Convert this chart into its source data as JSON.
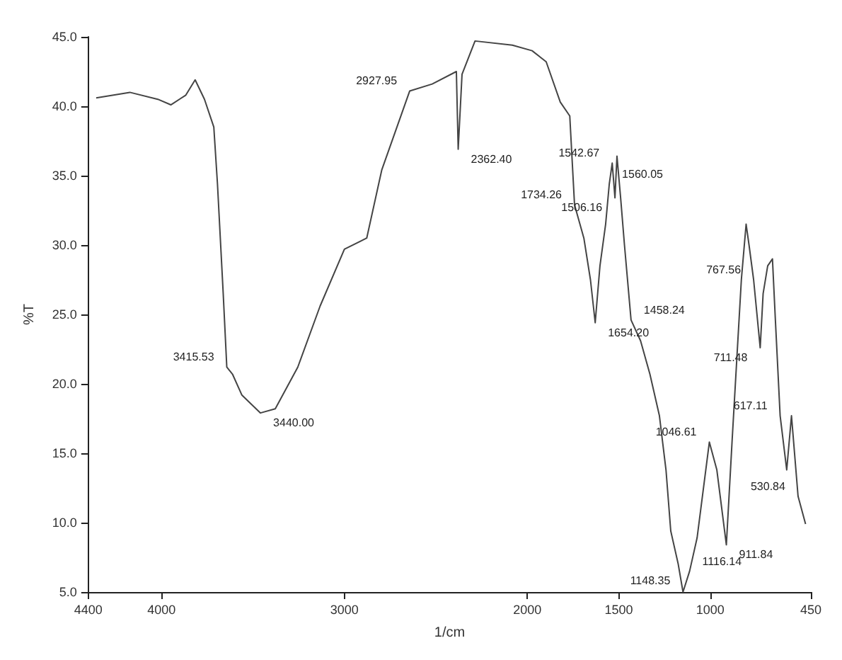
{
  "chart_data": {
    "type": "line",
    "xlabel": "1/cm",
    "ylabel": "%T",
    "grid": false,
    "marker": "none",
    "line_style": "solid",
    "xlim": [
      4400,
      450
    ],
    "xticks": [
      4400,
      4000,
      3000,
      2000,
      1500,
      1000,
      450
    ],
    "ylim": [
      5,
      45
    ],
    "yticks": [
      {
        "value": 5,
        "label": "5.0"
      },
      {
        "value": 10,
        "label": "10.0"
      },
      {
        "value": 15,
        "label": "15.0"
      },
      {
        "value": 20,
        "label": "20.0"
      },
      {
        "value": 25,
        "label": "25.0"
      },
      {
        "value": 30,
        "label": "30.0"
      },
      {
        "value": 35,
        "label": "35.0"
      },
      {
        "value": 40,
        "label": "40.0"
      },
      {
        "value": 45,
        "label": "45.0"
      }
    ],
    "x": [
      4357,
      4173,
      4020,
      3949,
      3867,
      3816,
      3765,
      3714,
      3694,
      3663,
      3643,
      3612,
      3561,
      3459,
      3378,
      3255,
      3133,
      3000,
      2878,
      2796,
      2643,
      2520,
      2388,
      2378,
      2357,
      2286,
      2082,
      1974,
      1897,
      1820,
      1768,
      1742,
      1691,
      1655,
      1629,
      1603,
      1572,
      1552,
      1536,
      1521,
      1510,
      1490,
      1469,
      1433,
      1381,
      1330,
      1278,
      1242,
      1216,
      1175,
      1149,
      1113,
      1072,
      1005,
      964,
      912,
      881,
      830,
      804,
      788,
      763,
      727,
      711,
      686,
      660,
      644,
      618,
      582,
      556,
      520,
      479
    ],
    "series": [
      {
        "color": "#444444",
        "values": [
          40.6,
          41.0,
          40.5,
          40.1,
          40.8,
          41.9,
          40.5,
          38.5,
          34.4,
          26.6,
          21.2,
          20.7,
          19.2,
          17.9,
          18.2,
          21.2,
          25.6,
          29.7,
          30.5,
          35.4,
          41.1,
          41.6,
          42.5,
          36.9,
          42.3,
          44.7,
          44.4,
          44.0,
          43.2,
          40.3,
          39.3,
          32.9,
          30.5,
          27.5,
          24.4,
          28.5,
          31.5,
          34.4,
          35.9,
          33.4,
          36.4,
          33.4,
          30.0,
          24.6,
          23.1,
          20.7,
          17.7,
          13.8,
          9.4,
          7.0,
          5.0,
          6.5,
          8.9,
          15.8,
          13.8,
          8.4,
          15.8,
          27.5,
          31.5,
          30.0,
          27.5,
          22.6,
          26.5,
          28.5,
          29.0,
          24.6,
          17.7,
          13.8,
          17.7,
          11.9,
          9.9
        ]
      }
    ],
    "annotations": [
      {
        "text": "3415.53",
        "x": 3643,
        "y": 21.2
      },
      {
        "text": "3440.00",
        "x": 3459,
        "y": 17.9
      },
      {
        "text": "2927.95",
        "x": 2643,
        "y": 41.1
      },
      {
        "text": "2362.40",
        "x": 2378,
        "y": 36.9
      },
      {
        "text": "1734.26",
        "x": 1742,
        "y": 32.9
      },
      {
        "text": "1654.20",
        "x": 1629,
        "y": 24.4
      },
      {
        "text": "1542.67",
        "x": 1536,
        "y": 35.9
      },
      {
        "text": "1560.05",
        "x": 1552,
        "y": 34.4
      },
      {
        "text": "1506.16",
        "x": 1521,
        "y": 33.4
      },
      {
        "text": "1458.24",
        "x": 1433,
        "y": 24.6
      },
      {
        "text": "1148.35",
        "x": 1149,
        "y": 5.0
      },
      {
        "text": "1116.14",
        "x": 1113,
        "y": 6.5
      },
      {
        "text": "1046.61",
        "x": 1005,
        "y": 15.8
      },
      {
        "text": "911.84",
        "x": 912,
        "y": 8.4
      },
      {
        "text": "711.48",
        "x": 727,
        "y": 22.6
      },
      {
        "text": "767.56",
        "x": 763,
        "y": 27.5
      },
      {
        "text": "617.11",
        "x": 618,
        "y": 17.7
      },
      {
        "text": "530.84",
        "x": 520,
        "y": 11.9
      }
    ]
  }
}
